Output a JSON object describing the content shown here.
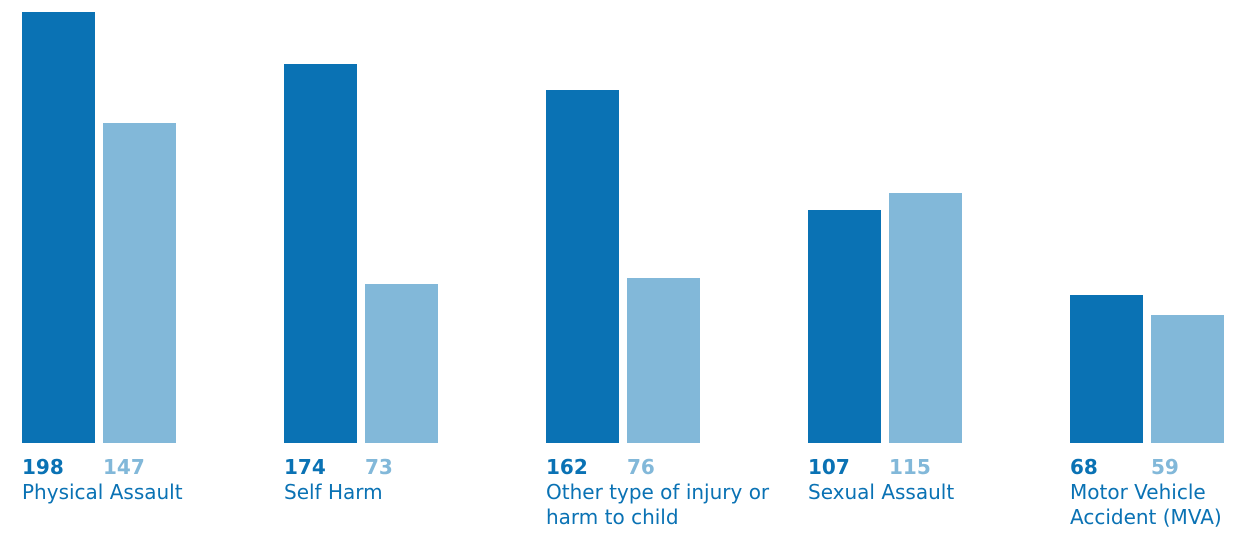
{
  "chart_data": {
    "type": "bar",
    "categories": [
      "Physical Assault",
      "Self Harm",
      "Other type of injury or harm to child",
      "Sexual Assault",
      "Motor Vehicle Accident (MVA)"
    ],
    "series": [
      {
        "color": "#0a72b4",
        "values": [
          198,
          174,
          162,
          107,
          68
        ]
      },
      {
        "color": "#82b8d9",
        "values": [
          147,
          73,
          76,
          115,
          59
        ]
      }
    ]
  }
}
